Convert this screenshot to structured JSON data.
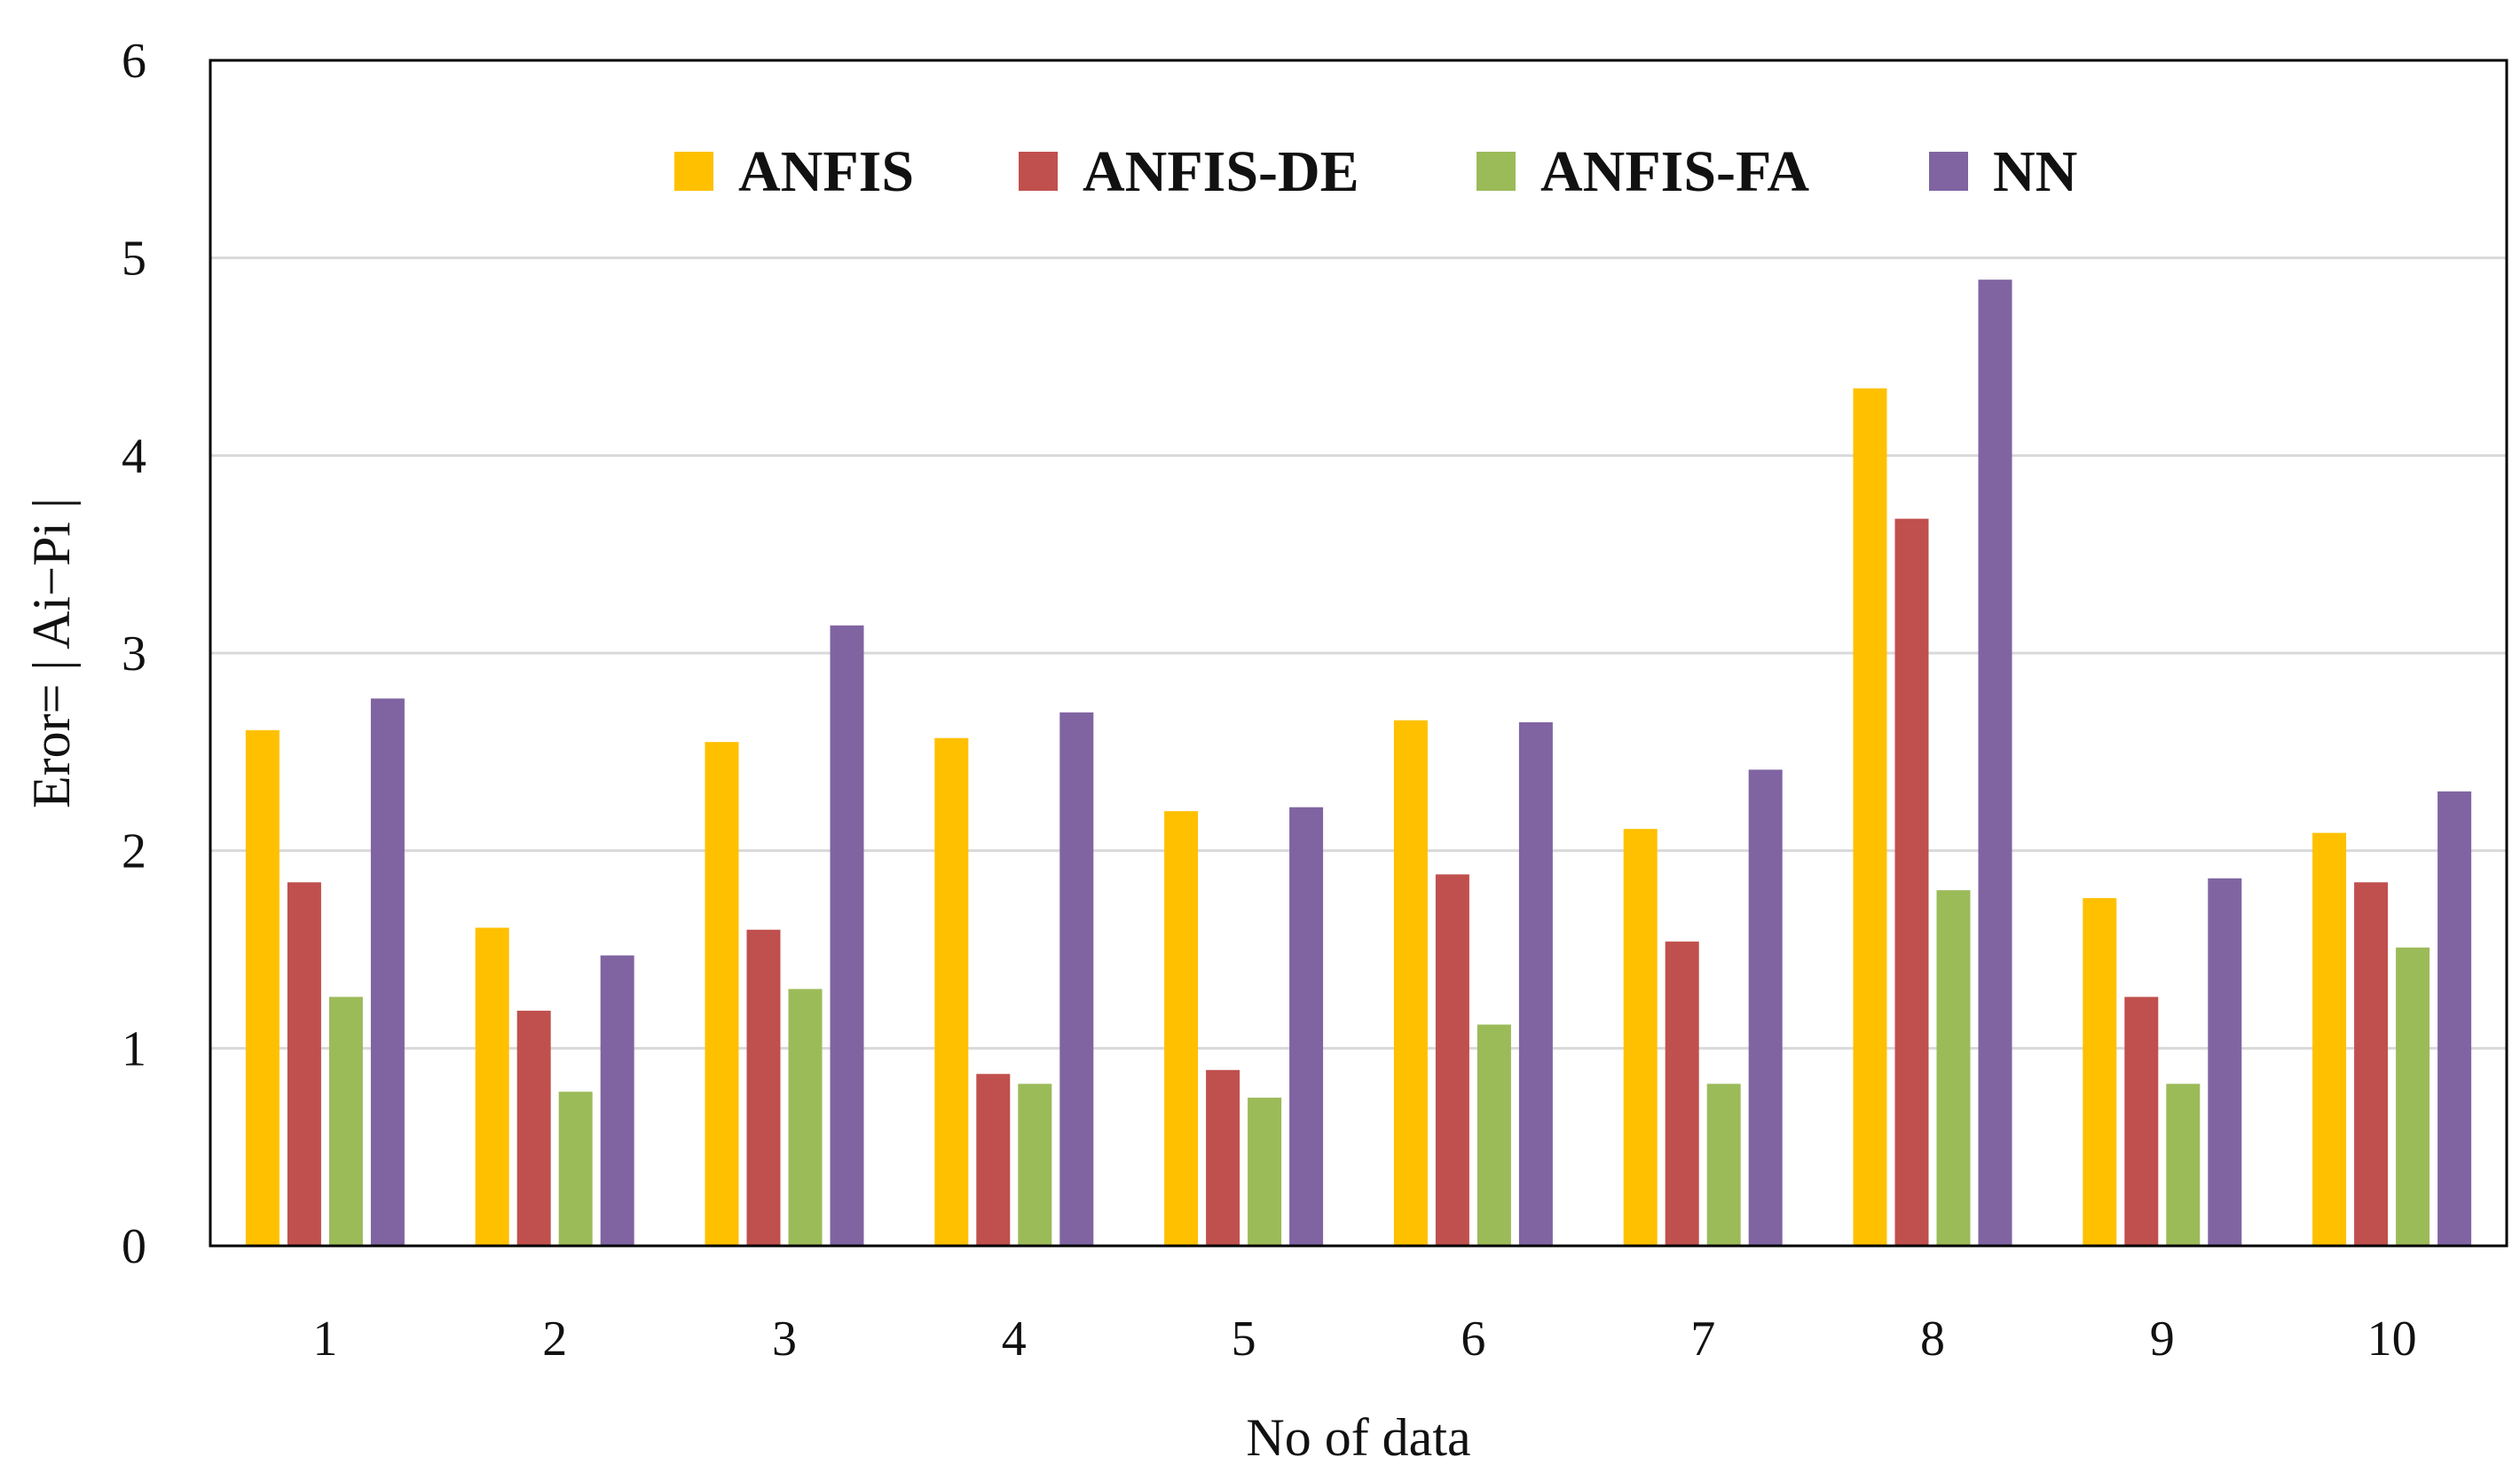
{
  "chart_data": {
    "type": "bar",
    "title": "",
    "xlabel": "No of data",
    "ylabel": "Eror= | Ai−Pi |",
    "ylim": [
      0,
      6
    ],
    "yticks": [
      "0",
      "1",
      "2",
      "3",
      "4",
      "5",
      "6"
    ],
    "grid": true,
    "legend_position": "top-center",
    "categories": [
      "1",
      "2",
      "3",
      "4",
      "5",
      "6",
      "7",
      "8",
      "9",
      "10"
    ],
    "series": [
      {
        "name": "ANFIS",
        "color": "#FFC000",
        "values": [
          2.61,
          1.61,
          2.55,
          2.57,
          2.2,
          2.66,
          2.11,
          4.34,
          1.76,
          2.09
        ]
      },
      {
        "name": "ANFIS-DE",
        "color": "#C0504D",
        "values": [
          1.84,
          1.19,
          1.6,
          0.87,
          0.89,
          1.88,
          1.54,
          3.68,
          1.26,
          1.84
        ]
      },
      {
        "name": "ANFIS-FA",
        "color": "#9BBB59",
        "values": [
          1.26,
          0.78,
          1.3,
          0.82,
          0.75,
          1.12,
          0.82,
          1.8,
          0.82,
          1.51
        ]
      },
      {
        "name": "NN",
        "color": "#8064A2",
        "values": [
          2.77,
          1.47,
          3.14,
          2.7,
          2.22,
          2.65,
          2.41,
          4.89,
          1.86,
          2.3
        ]
      }
    ]
  }
}
